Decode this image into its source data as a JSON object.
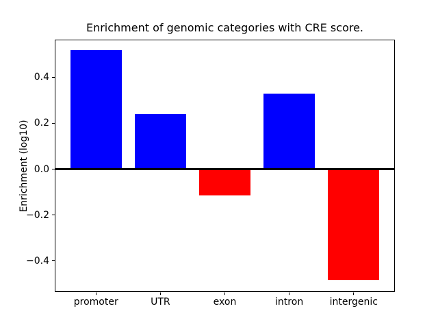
{
  "chart_data": {
    "type": "bar",
    "title": "Enrichment of genomic categories with CRE score.",
    "xlabel": "",
    "ylabel": "Enrichment (log10)",
    "categories": [
      "promoter",
      "UTR",
      "exon",
      "intron",
      "intergenic"
    ],
    "values": [
      0.52,
      0.24,
      -0.115,
      0.33,
      -0.485
    ],
    "positive_color": "#0000ff",
    "negative_color": "#ff0000",
    "bar_width": 0.8,
    "ylim": [
      -0.535,
      0.565
    ],
    "xlim": [
      -0.64,
      4.64
    ],
    "yticks": [
      0.4,
      0.2,
      0.0,
      -0.2,
      -0.4
    ],
    "ytick_labels": [
      "0.4",
      "0.2",
      "0.0",
      "−0.2",
      "−0.4"
    ],
    "zero_line": {
      "value": 0.0,
      "color": "#000000",
      "thickness_px": 2.5
    },
    "grid": false,
    "legend": null,
    "background_color": "#ffffff",
    "axes_edge_color": "#000000",
    "text_color": "#000000"
  }
}
